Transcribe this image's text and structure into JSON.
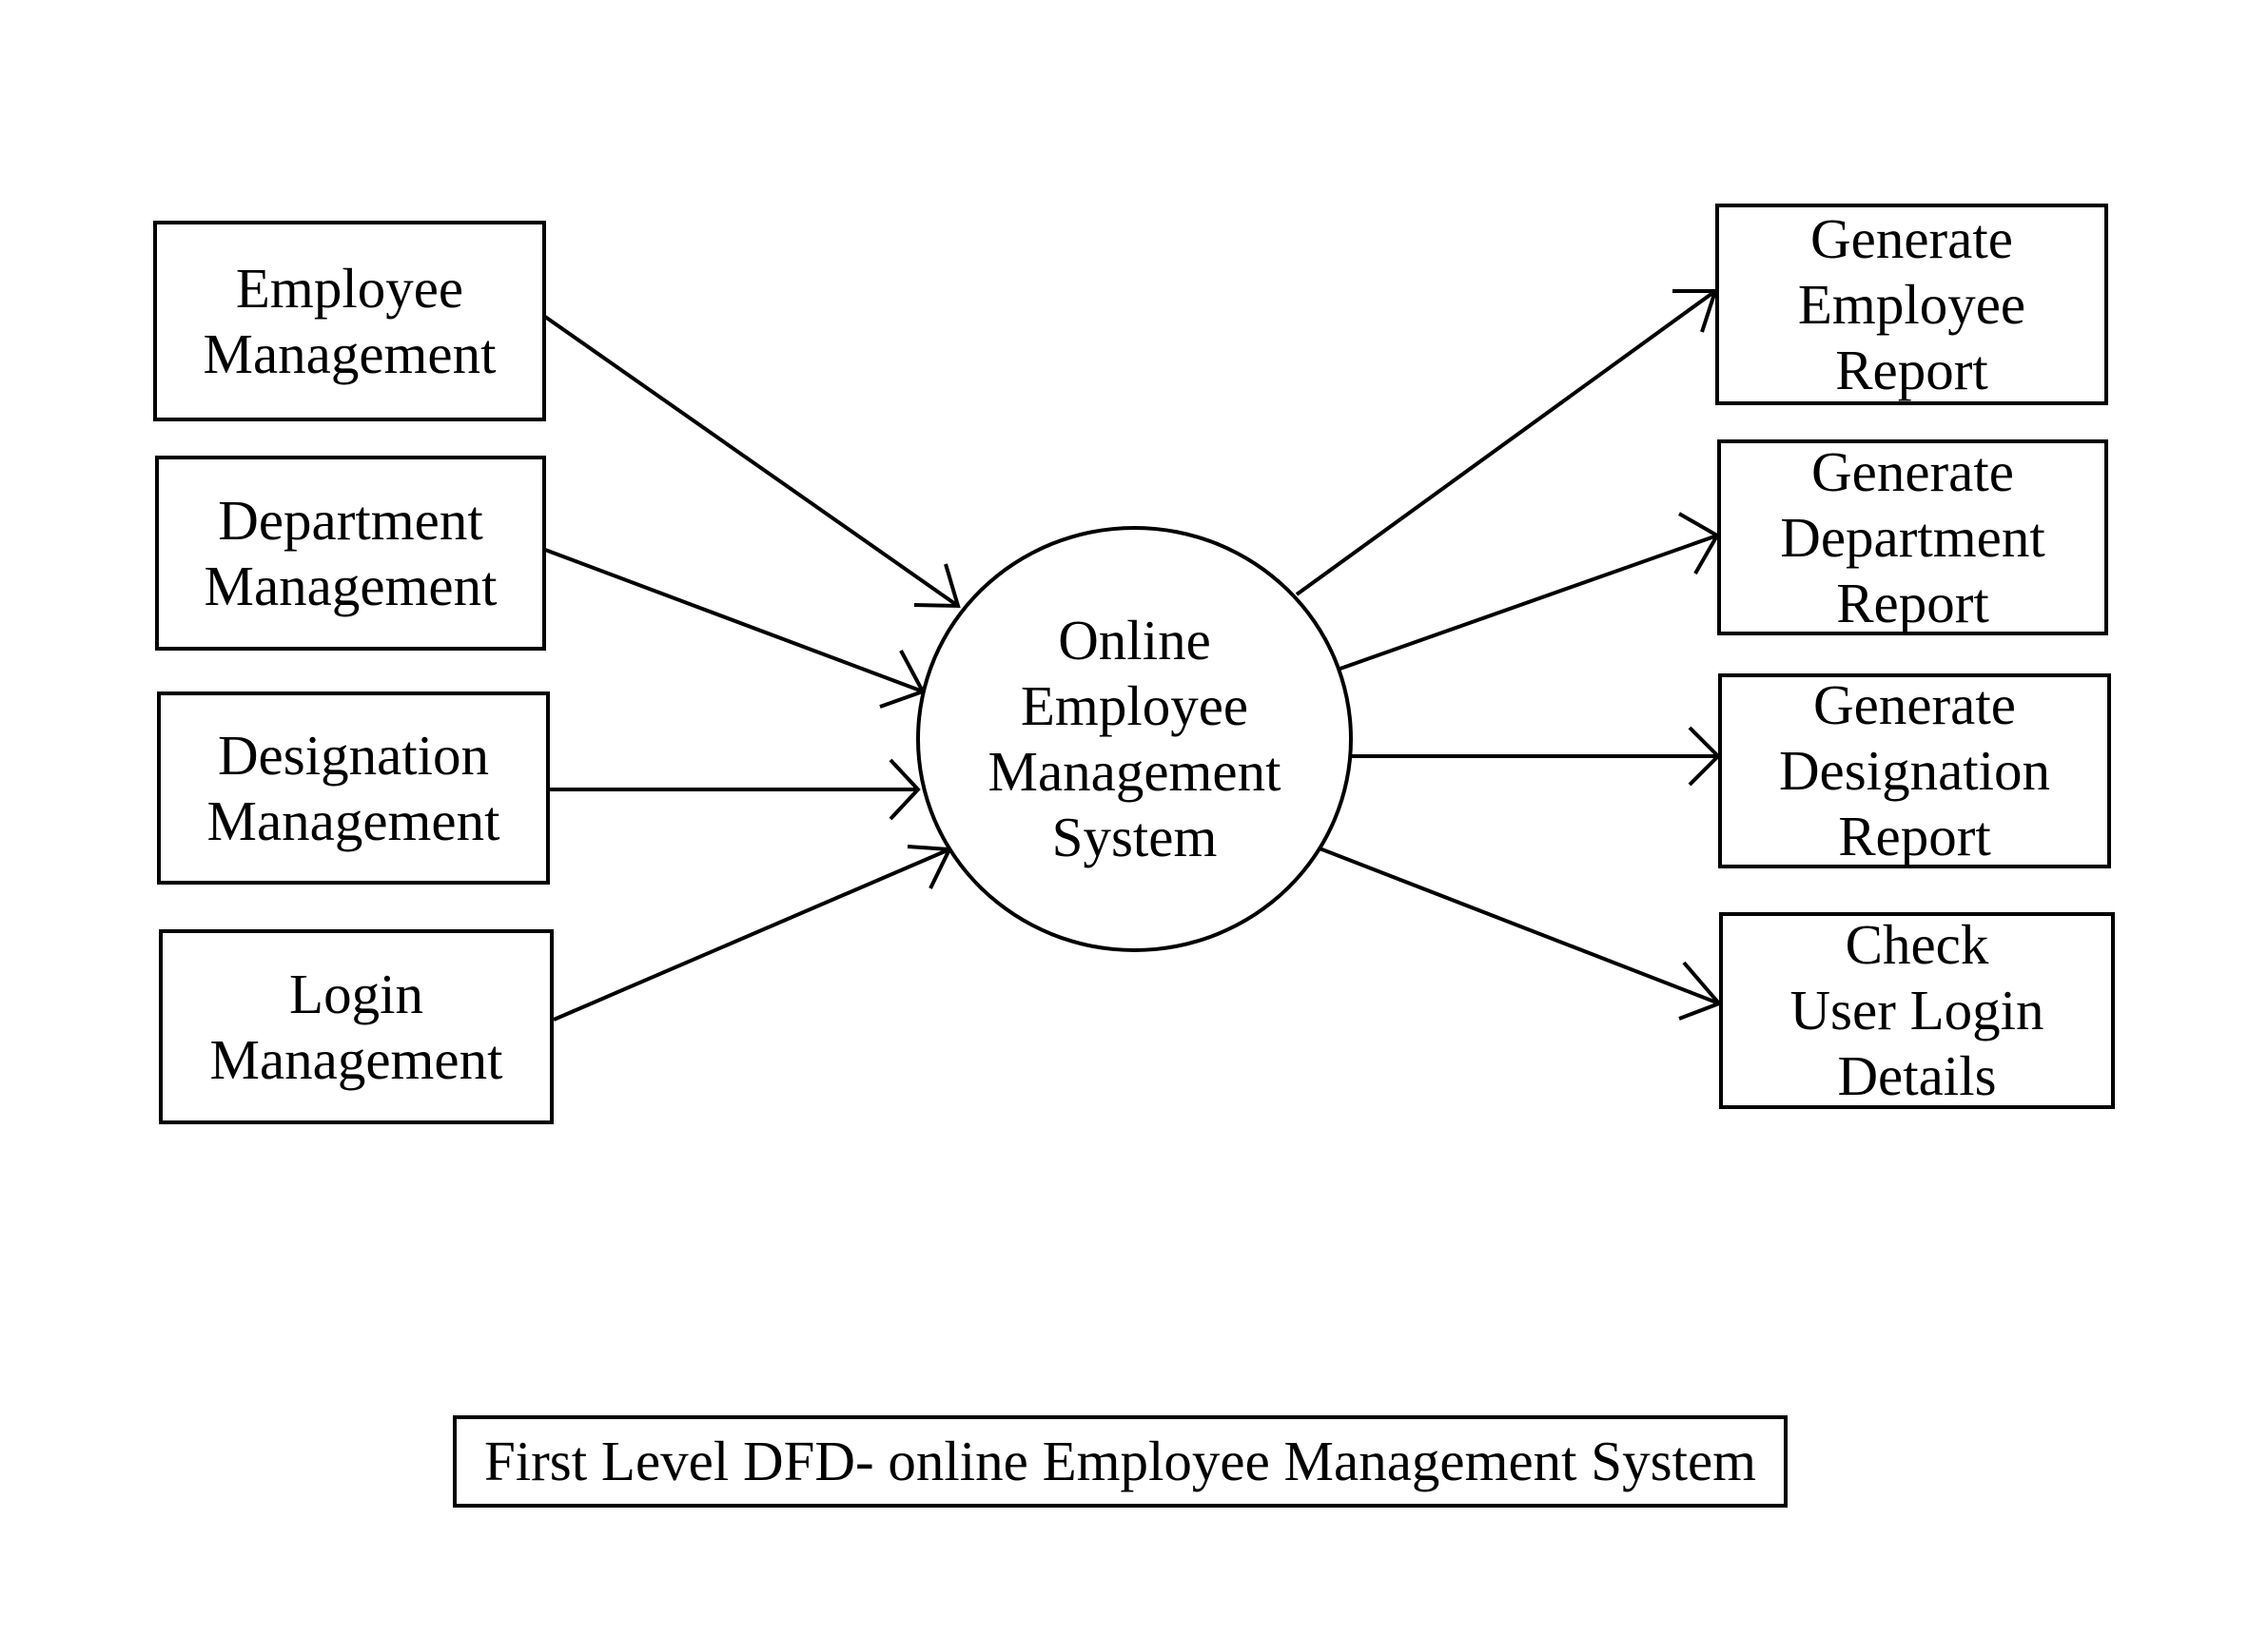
{
  "inputs": [
    {
      "lines": [
        "Employee",
        "Management"
      ]
    },
    {
      "lines": [
        "Department",
        "Management"
      ]
    },
    {
      "lines": [
        "Designation",
        "Management"
      ]
    },
    {
      "lines": [
        "Login",
        "Management"
      ]
    }
  ],
  "process": {
    "lines": [
      "Online",
      "Employee",
      "Management",
      "System"
    ]
  },
  "outputs": [
    {
      "lines": [
        "Generate",
        "Employee",
        "Report"
      ]
    },
    {
      "lines": [
        "Generate",
        "Department",
        "Report"
      ]
    },
    {
      "lines": [
        "Generate",
        "Designation",
        "Report"
      ]
    },
    {
      "lines": [
        "Check",
        "User Login",
        "Details"
      ]
    }
  ],
  "caption": "First Level DFD- online Employee Management System"
}
